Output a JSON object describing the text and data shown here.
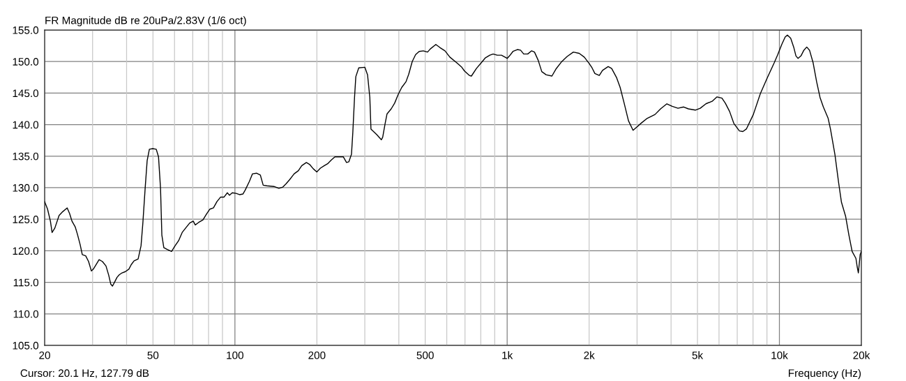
{
  "chart_data": {
    "type": "line",
    "title": "FR Magnitude dB re 20uPa/2.83V (1/6 oct)",
    "xlabel": "Frequency (Hz)",
    "annotations": [
      "Cursor: 20.1 Hz, 127.79 dB"
    ],
    "log": "x",
    "grid": true,
    "legend": false,
    "marker": "none",
    "line_style": "solid",
    "xlim": [
      20,
      20000
    ],
    "ylim": [
      105,
      155
    ],
    "xticks": [
      20,
      {
        "value": 30,
        "label": null
      },
      {
        "value": 40,
        "label": null
      },
      50,
      {
        "value": 60,
        "label": null
      },
      {
        "value": 70,
        "label": null
      },
      {
        "value": 80,
        "label": null
      },
      {
        "value": 90,
        "label": null
      },
      100,
      200,
      {
        "value": 300,
        "label": null
      },
      {
        "value": 400,
        "label": null
      },
      500,
      {
        "value": 600,
        "label": null
      },
      {
        "value": 700,
        "label": null
      },
      {
        "value": 800,
        "label": null
      },
      {
        "value": 900,
        "label": null
      },
      {
        "value": 1000,
        "label": "1k"
      },
      {
        "value": 2000,
        "label": "2k"
      },
      {
        "value": 3000,
        "label": null
      },
      {
        "value": 4000,
        "label": null
      },
      {
        "value": 5000,
        "label": "5k"
      },
      {
        "value": 6000,
        "label": null
      },
      {
        "value": 7000,
        "label": null
      },
      {
        "value": 8000,
        "label": null
      },
      {
        "value": 9000,
        "label": null
      },
      {
        "value": 10000,
        "label": "10k"
      },
      {
        "value": 20000,
        "label": "20k"
      }
    ],
    "yticks": [
      {
        "value": 105,
        "label": "105.0"
      },
      {
        "value": 110,
        "label": "110.0"
      },
      {
        "value": 115,
        "label": "115.0"
      },
      {
        "value": 120,
        "label": "120.0"
      },
      {
        "value": 125,
        "label": "125.0"
      },
      {
        "value": 130,
        "label": "130.0"
      },
      {
        "value": 135,
        "label": "135.0"
      },
      {
        "value": 140,
        "label": "140.0"
      },
      {
        "value": 145,
        "label": "145.0"
      },
      {
        "value": 150,
        "label": "150.0"
      },
      {
        "value": 155,
        "label": "155.0"
      }
    ],
    "series": [
      {
        "color": "#000000",
        "x": [
          20,
          20.5,
          21.0,
          21.3,
          21.8,
          22.6,
          23.3,
          24.2,
          24.7,
          25.2,
          25.9,
          26.4,
          27.0,
          27.5,
          28.3,
          29.0,
          29.7,
          30.2,
          31.0,
          31.7,
          32.6,
          33.6,
          34.4,
          35.0,
          35.5,
          36.1,
          36.9,
          37.6,
          38.5,
          39.6,
          40.8,
          41.6,
          42.6,
          44.1,
          45.2,
          45.9,
          46.8,
          47.6,
          48.5,
          49.9,
          51.4,
          52.4,
          53.3,
          53.9,
          54.8,
          56.5,
          58.5,
          60.3,
          62.1,
          64.0,
          65.9,
          68.2,
          70.3,
          71.5,
          73.6,
          76.3,
          78.6,
          80.9,
          83.4,
          85.9,
          88.5,
          91.1,
          93.8,
          95.5,
          97.8,
          101,
          104,
          107,
          109,
          113,
          116,
          120,
          124,
          127,
          131,
          139,
          145,
          150,
          154,
          159,
          165,
          171,
          176,
          183,
          188,
          194,
          200,
          206,
          213,
          219,
          226,
          233,
          241,
          250,
          257,
          262,
          268,
          271,
          275,
          278,
          285,
          300,
          307,
          313,
          316,
          332,
          345,
          349,
          356,
          362,
          375,
          386,
          398,
          410,
          425,
          435,
          448,
          461,
          475,
          492,
          510,
          522,
          547,
          567,
          591,
          616,
          653,
          681,
          697,
          726,
          739,
          771,
          803,
          832,
          863,
          888,
          920,
          953,
          982,
          1000,
          1020,
          1050,
          1090,
          1120,
          1150,
          1190,
          1230,
          1260,
          1300,
          1340,
          1390,
          1460,
          1510,
          1580,
          1660,
          1750,
          1840,
          1920,
          2000,
          2050,
          2100,
          2180,
          2240,
          2350,
          2420,
          2520,
          2600,
          2690,
          2790,
          2900,
          2990,
          3120,
          3270,
          3490,
          3660,
          3860,
          4040,
          4240,
          4450,
          4630,
          4910,
          5120,
          5370,
          5660,
          5900,
          6150,
          6330,
          6560,
          6800,
          7130,
          7340,
          7560,
          8020,
          8510,
          9020,
          9570,
          9860,
          10200,
          10500,
          10700,
          11000,
          11300,
          11500,
          11700,
          12000,
          12300,
          12600,
          12900,
          13300,
          13700,
          14100,
          14500,
          15100,
          15400,
          16000,
          16500,
          16900,
          17500,
          18000,
          18500,
          19100,
          19300,
          19500,
          19800,
          20000
        ],
        "values": [
          127.8,
          126.6,
          124.7,
          122.9,
          123.6,
          125.6,
          126.2,
          126.8,
          125.9,
          124.7,
          123.8,
          122.6,
          121.0,
          119.4,
          119.2,
          118.3,
          116.8,
          117.1,
          117.9,
          118.6,
          118.3,
          117.6,
          116.1,
          114.7,
          114.4,
          115.0,
          115.8,
          116.2,
          116.5,
          116.7,
          117.1,
          117.8,
          118.4,
          118.7,
          120.8,
          124.4,
          129.9,
          134.3,
          136.1,
          136.2,
          136.1,
          134.9,
          129.9,
          122.5,
          120.5,
          120.2,
          119.9,
          120.8,
          121.6,
          122.9,
          123.6,
          124.4,
          124.7,
          124.1,
          124.5,
          124.9,
          125.8,
          126.6,
          126.8,
          127.8,
          128.5,
          128.5,
          129.2,
          128.8,
          129.2,
          129.1,
          128.9,
          129.0,
          129.6,
          131.0,
          132.2,
          132.3,
          132.0,
          130.4,
          130.3,
          130.2,
          129.9,
          130.1,
          130.6,
          131.3,
          132.2,
          132.7,
          133.5,
          134.0,
          133.7,
          133.0,
          132.5,
          133.1,
          133.5,
          133.8,
          134.4,
          134.9,
          134.9,
          134.9,
          134.0,
          134.1,
          135.3,
          138.7,
          144.3,
          147.6,
          149.0,
          149.1,
          147.9,
          144.3,
          139.3,
          138.4,
          137.6,
          138.0,
          140.1,
          141.7,
          142.5,
          143.4,
          144.8,
          145.9,
          146.8,
          148.0,
          150.0,
          151.1,
          151.6,
          151.7,
          151.5,
          152.0,
          152.7,
          152.2,
          151.7,
          150.7,
          149.8,
          149.1,
          148.5,
          147.8,
          147.7,
          148.9,
          149.8,
          150.6,
          151.0,
          151.2,
          151.0,
          151.0,
          150.7,
          150.5,
          150.9,
          151.6,
          151.9,
          151.8,
          151.2,
          151.2,
          151.7,
          151.5,
          150.2,
          148.4,
          147.9,
          147.7,
          148.8,
          149.9,
          150.8,
          151.5,
          151.3,
          150.7,
          149.7,
          149.0,
          148.1,
          147.8,
          148.6,
          149.2,
          148.9,
          147.5,
          145.9,
          143.4,
          140.6,
          139.1,
          139.6,
          140.3,
          141.0,
          141.6,
          142.5,
          143.3,
          142.9,
          142.6,
          142.8,
          142.5,
          142.3,
          142.6,
          143.3,
          143.7,
          144.4,
          144.2,
          143.4,
          142.1,
          140.2,
          139.0,
          138.9,
          139.3,
          141.6,
          144.9,
          147.4,
          149.8,
          151.1,
          152.7,
          153.9,
          154.2,
          153.7,
          152.2,
          150.9,
          150.5,
          150.9,
          151.8,
          152.3,
          151.8,
          149.8,
          146.8,
          144.3,
          142.8,
          141.0,
          139.3,
          135.2,
          130.8,
          127.7,
          125.5,
          122.5,
          119.9,
          118.8,
          117.5,
          116.5,
          119.4,
          119.9
        ]
      }
    ]
  }
}
